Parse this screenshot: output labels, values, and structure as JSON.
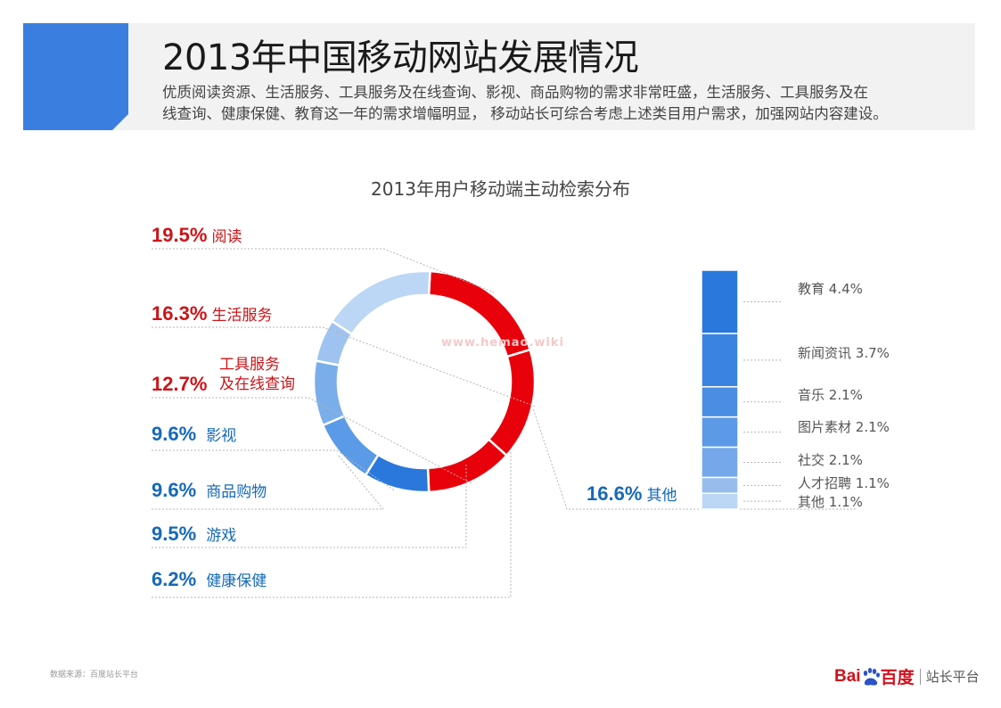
{
  "header": {
    "title": "2013年中国移动网站发展情况",
    "description_lines": [
      "优质阅读资源、生活服务、工具服务及在线查询、影视、商品购物的需求非常旺盛，生活服务、工具服务及在",
      "线查询、健康保健、教育这一年的需求增幅明显， 移动站长可综合考虑上述类目用户需求，加强网站内容建设。"
    ],
    "accent_color": "#3a7fe0"
  },
  "watermark": "www.hemao.wiki",
  "chart_data": {
    "type": "pie",
    "title": "2013年用户移动端主动检索分布",
    "slices": [
      {
        "label": "阅读",
        "value": 19.5,
        "display": "19.5%",
        "color": "#e8000b"
      },
      {
        "label": "生活服务",
        "value": 16.3,
        "display": "16.3%",
        "color": "#e8000b"
      },
      {
        "label": "工具服务\n及在线查询",
        "label_lines": [
          "工具服务",
          "及在线查询"
        ],
        "value": 12.7,
        "display": "12.7%",
        "color": "#e8000b"
      },
      {
        "label": "影视",
        "value": 9.6,
        "display": "9.6%",
        "color": "#2a78dc"
      },
      {
        "label": "商品购物",
        "value": 9.6,
        "display": "9.6%",
        "color": "#5b9ae6"
      },
      {
        "label": "游戏",
        "value": 9.5,
        "display": "9.5%",
        "color": "#7aaeea"
      },
      {
        "label": "健康保健",
        "value": 6.2,
        "display": "6.2%",
        "color": "#9fc3f0"
      },
      {
        "label": "其他",
        "value": 16.6,
        "display": "16.6%",
        "color": "#bcd6f5"
      }
    ],
    "breakdown": {
      "parent": "其他",
      "items": [
        {
          "label": "教育",
          "value": 4.4,
          "display": "4.4%",
          "color": "#2a78dc"
        },
        {
          "label": "新闻资讯",
          "value": 3.7,
          "display": "3.7%",
          "color": "#3a83e0"
        },
        {
          "label": "音乐",
          "value": 2.1,
          "display": "2.1%",
          "color": "#4a8ee3"
        },
        {
          "label": "图片素材",
          "value": 2.1,
          "display": "2.1%",
          "color": "#5c99e6"
        },
        {
          "label": "社交",
          "value": 2.1,
          "display": "2.1%",
          "color": "#74a8ea"
        },
        {
          "label": "人才招聘",
          "value": 1.1,
          "display": "1.1%",
          "color": "#96bdee"
        },
        {
          "label": "其他",
          "value": 1.1,
          "display": "1.1%",
          "color": "#bcd6f5"
        }
      ]
    },
    "colors": {
      "red": "#cc1418",
      "blue": "#1569b8"
    }
  },
  "footer": {
    "source": "数据来源：百度站长平台",
    "brand_bai": "Bai",
    "brand_du": "百度",
    "brand_platform": "站长平台"
  }
}
